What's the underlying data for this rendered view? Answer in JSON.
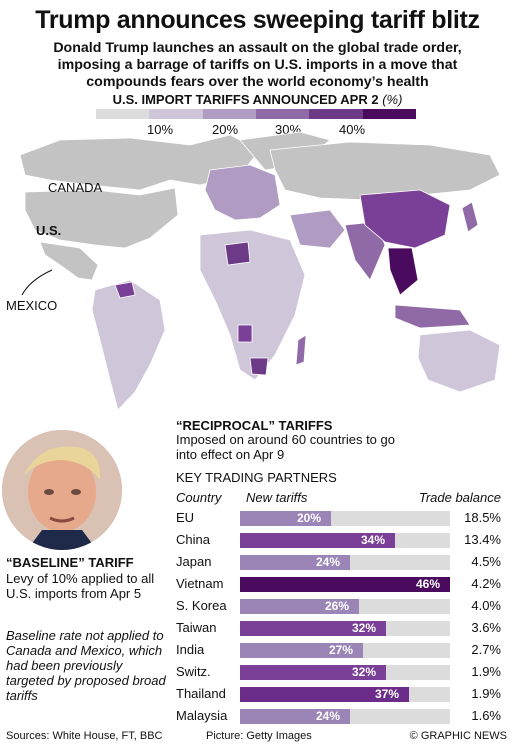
{
  "title": "Trump announces sweeping tariff blitz",
  "subtitle": "Donald Trump launches an assault on the global trade order, imposing a barrage of tariffs on U.S. imports in a move that compounds fears over the world economy’s health",
  "legend": {
    "title": "U.S. IMPORT TARIFFS ANNOUNCED APR 2",
    "unit": "(%)",
    "ticks": [
      "10%",
      "20%",
      "30%",
      "40%"
    ],
    "colors": [
      "#dcdcdc",
      "#cfc6da",
      "#b09bc3",
      "#8f6aa6",
      "#6c3a86",
      "#4a0b5e"
    ]
  },
  "map": {
    "labels": {
      "canada": "CANADA",
      "us": "U.S.",
      "mexico": "MEXICO"
    },
    "land_color": "#b9b9b9",
    "ocean_color": "#ffffff"
  },
  "baseline": {
    "heading": "“BASELINE” TARIFF",
    "description": "Levy of 10% applied to all U.S. imports from Apr 5",
    "note": "Baseline rate not applied to Canada and Mexico, which had been previously targeted by proposed broad tariffs"
  },
  "reciprocal": {
    "heading": "“RECIPROCAL” TARIFFS",
    "description": "Imposed on around 60 countries to go into effect on Apr 9",
    "partners_heading": "KEY TRADING PARTNERS",
    "col_country": "Country",
    "col_tariffs": "New tariffs",
    "col_balance": "Trade balance"
  },
  "chart_data": {
    "type": "bar",
    "categories": [
      "EU",
      "China",
      "Japan",
      "Vietnam",
      "S. Korea",
      "Taiwan",
      "India",
      "Switz.",
      "Thailand",
      "Malaysia"
    ],
    "series": [
      {
        "name": "New tariffs",
        "values": [
          20,
          34,
          24,
          46,
          26,
          32,
          27,
          32,
          37,
          24
        ]
      }
    ],
    "value_labels": [
      "20%",
      "34%",
      "24%",
      "46%",
      "26%",
      "32%",
      "27%",
      "32%",
      "37%",
      "24%"
    ],
    "trade_balance": [
      "18.5%",
      "13.4%",
      "4.5%",
      "4.2%",
      "4.0%",
      "3.6%",
      "2.7%",
      "1.9%",
      "1.9%",
      "1.6%"
    ],
    "xlim": [
      0,
      46
    ],
    "bar_colors": {
      "20": "#9a85b6",
      "24": "#9a85b6",
      "26": "#9a85b6",
      "27": "#9a85b6",
      "32": "#7a3f96",
      "34": "#7a3f96",
      "37": "#6c2d8a",
      "46": "#4a0b5e"
    }
  },
  "footer": {
    "sources": "Sources: White House, FT, BBC",
    "picture": "Picture: Getty Images",
    "brand": "© GRAPHIC NEWS"
  },
  "watermark": "GRAPHIC NEWS"
}
